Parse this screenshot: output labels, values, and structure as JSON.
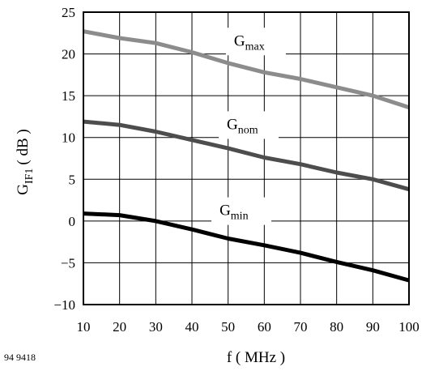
{
  "figure_code": "94 9418",
  "chart_data": {
    "type": "line",
    "xlabel": "f ( MHz )",
    "ylabel": {
      "main": "G",
      "sub": "IF1",
      "suffix": "( dB )"
    },
    "xlim": [
      10,
      100
    ],
    "ylim": [
      -10,
      25
    ],
    "x_ticks": [
      10,
      20,
      30,
      40,
      50,
      60,
      70,
      80,
      90,
      100
    ],
    "y_ticks": [
      -10,
      -5,
      0,
      5,
      10,
      15,
      20,
      25
    ],
    "grid": true,
    "x": [
      10,
      20,
      30,
      40,
      50,
      60,
      70,
      80,
      90,
      100
    ],
    "series": [
      {
        "name": "G_max",
        "label_main": "G",
        "label_sub": "max",
        "color": "#8c8c8c",
        "values": [
          22.7,
          21.9,
          21.3,
          20.2,
          18.9,
          17.8,
          17.0,
          16.0,
          15.0,
          13.6
        ]
      },
      {
        "name": "G_nom",
        "label_main": "G",
        "label_sub": "nom",
        "color": "#4d4d4d",
        "values": [
          11.9,
          11.5,
          10.7,
          9.7,
          8.7,
          7.6,
          6.8,
          5.8,
          5.0,
          3.8
        ]
      },
      {
        "name": "G_min",
        "label_main": "G",
        "label_sub": "min",
        "color": "#000000",
        "values": [
          0.9,
          0.7,
          0.0,
          -1.0,
          -2.1,
          -2.9,
          -3.8,
          -4.9,
          -5.9,
          -7.1
        ]
      }
    ]
  }
}
